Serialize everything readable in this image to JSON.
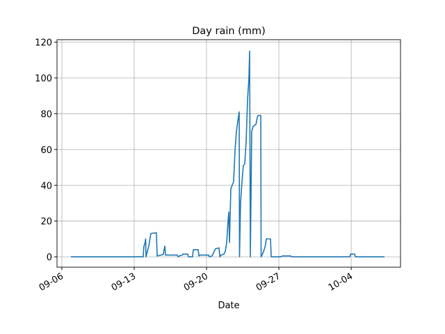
{
  "chart_data": {
    "type": "line",
    "title": "Day rain (mm)",
    "xlabel": "Date",
    "x": [
      6.87,
      13.87,
      13.94,
      14.01,
      14.11,
      14.14,
      14.41,
      14.61,
      15.15,
      15.22,
      15.62,
      15.82,
      15.96,
      16.03,
      17.17,
      17.24,
      17.37,
      17.64,
      17.71,
      18.18,
      18.25,
      18.65,
      18.72,
      19.19,
      19.26,
      19.39,
      20.2,
      20.27,
      20.54,
      20.74,
      20.87,
      21.21,
      21.28,
      21.41,
      21.68,
      21.81,
      21.95,
      22.08,
      22.15,
      22.22,
      22.35,
      22.48,
      22.62,
      22.76,
      22.89,
      23.03,
      23.16,
      23.19,
      23.29,
      23.43,
      23.56,
      23.7,
      23.83,
      23.97,
      24.1,
      24.17,
      24.24,
      24.37,
      24.51,
      24.78,
      24.91,
      24.98,
      25.25,
      25.28,
      25.45,
      25.58,
      25.72,
      25.78,
      26.19,
      26.26,
      27.2,
      27.33,
      28.14,
      28.21,
      33.86,
      33.93,
      34.33,
      34.4,
      37.22
    ],
    "series": [
      {
        "name": "Day rain (mm)",
        "color": "#1f77b4",
        "values": [
          0,
          0,
          6,
          7,
          10,
          0,
          6,
          13,
          13.5,
          0.5,
          1,
          1.5,
          6,
          1,
          1,
          0,
          0.5,
          1,
          1.5,
          1.5,
          0,
          0,
          4,
          4,
          0.5,
          1,
          1,
          0,
          0.5,
          3,
          4.5,
          5,
          0,
          1,
          1.5,
          3,
          8,
          20,
          25,
          8,
          38,
          40,
          42,
          60,
          70,
          76,
          81,
          0,
          30,
          42,
          51,
          52,
          64,
          88,
          100,
          115,
          0,
          70,
          73,
          74,
          78,
          79,
          79,
          0,
          2,
          4,
          7,
          10,
          10,
          0,
          0,
          0.5,
          0.5,
          0,
          0,
          1.5,
          1.5,
          0,
          0
        ]
      }
    ],
    "xlim": [
      5.53,
      38.77
    ],
    "xticks": [
      {
        "value": 6,
        "label": "09-06"
      },
      {
        "value": 13,
        "label": "09-13"
      },
      {
        "value": 20,
        "label": "09-20"
      },
      {
        "value": 27,
        "label": "09-27"
      },
      {
        "value": 34,
        "label": "10-04"
      }
    ],
    "ylim": [
      -5.8,
      121.4
    ],
    "yticks": [
      0,
      20,
      40,
      60,
      80,
      100,
      120
    ],
    "grid": true
  }
}
